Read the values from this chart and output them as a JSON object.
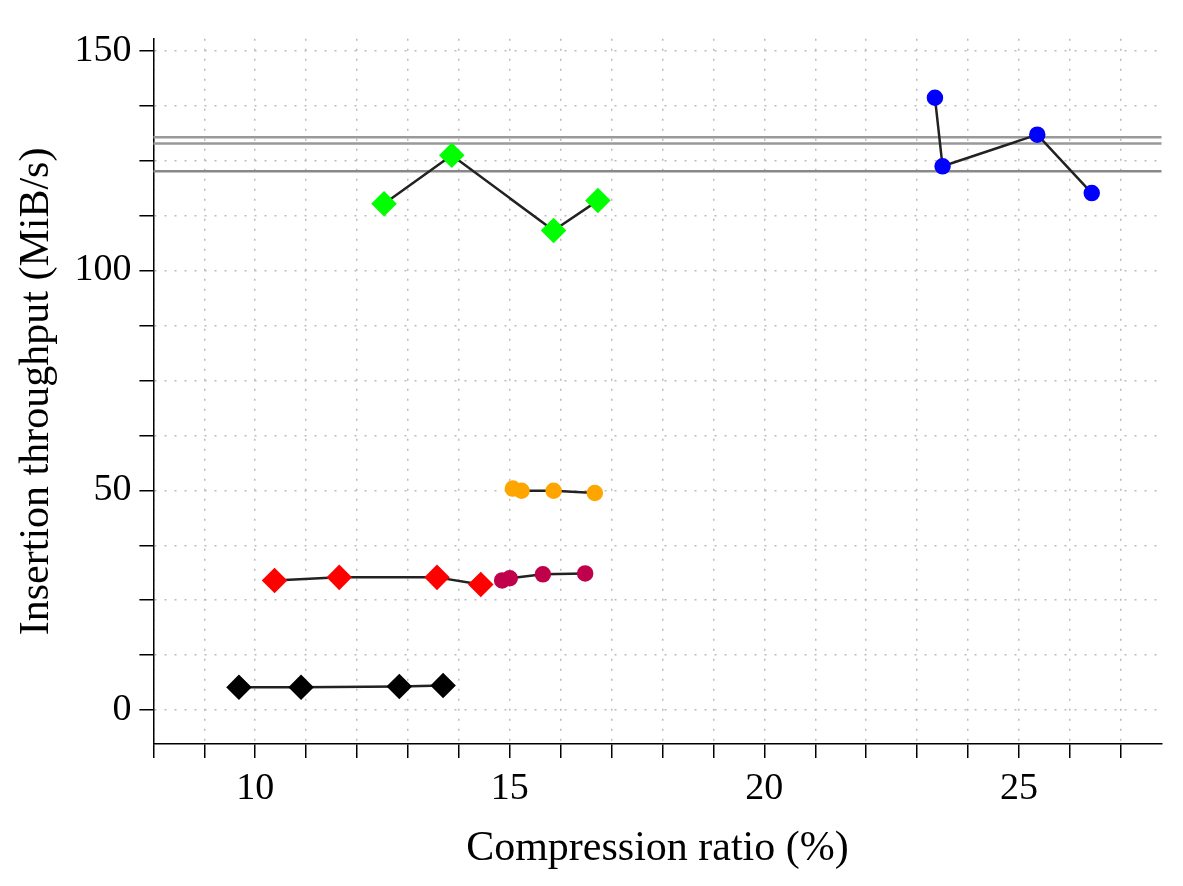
{
  "chart_data": {
    "type": "line",
    "xlabel": "Compression ratio (%)",
    "ylabel": "Insertion throughput (MiB/s)",
    "xlim": [
      8,
      27.8
    ],
    "ylim": [
      -7.7,
      152.7
    ],
    "xticks": [
      {
        "value": 8,
        "label": null
      },
      {
        "value": 9,
        "label": null
      },
      10,
      {
        "value": 11,
        "label": null
      },
      {
        "value": 12,
        "label": null
      },
      {
        "value": 13,
        "label": null
      },
      {
        "value": 14,
        "label": null
      },
      15,
      {
        "value": 16,
        "label": null
      },
      {
        "value": 17,
        "label": null
      },
      {
        "value": 18,
        "label": null
      },
      {
        "value": 19,
        "label": null
      },
      20,
      {
        "value": 21,
        "label": null
      },
      {
        "value": 22,
        "label": null
      },
      {
        "value": 23,
        "label": null
      },
      {
        "value": 24,
        "label": null
      },
      25,
      {
        "value": 26,
        "label": null
      },
      {
        "value": 27,
        "label": null
      }
    ],
    "yticks": [
      0,
      {
        "value": 12.5,
        "label": null
      },
      {
        "value": 25,
        "label": null
      },
      {
        "value": 37.5,
        "label": null
      },
      50,
      {
        "value": 62.5,
        "label": null
      },
      {
        "value": 75,
        "label": null
      },
      {
        "value": 87.5,
        "label": null
      },
      100,
      {
        "value": 112.5,
        "label": null
      },
      {
        "value": 125,
        "label": null
      },
      {
        "value": 137.5,
        "label": null
      },
      150
    ],
    "grid": true,
    "legend": false,
    "ref_lines": [
      {
        "axis": "y",
        "value": 130.3,
        "color": "#999999"
      },
      {
        "axis": "y",
        "value": 128.9,
        "color": "#999999"
      },
      {
        "axis": "y",
        "value": 122.6,
        "color": "#888888"
      }
    ],
    "series": [
      {
        "color": "#000000",
        "marker": "diamond",
        "x": [
          9.68,
          10.9,
          12.83,
          13.69
        ],
        "values": [
          5.2,
          5.2,
          5.4,
          5.6
        ]
      },
      {
        "color": "#ff0000",
        "marker": "diamond",
        "x": [
          10.38,
          11.65,
          13.57,
          14.43
        ],
        "values": [
          29.5,
          30.2,
          30.2,
          28.6
        ]
      },
      {
        "color": "#c0004a",
        "marker": "circle",
        "x": [
          14.85,
          15.0,
          15.65,
          16.48
        ],
        "values": [
          29.5,
          30,
          30.9,
          31.1
        ]
      },
      {
        "color": "#ffa500",
        "marker": "circle",
        "x": [
          15.06,
          15.23,
          15.86,
          16.67
        ],
        "values": [
          50.4,
          49.9,
          49.9,
          49.4
        ]
      },
      {
        "color": "#00ff00",
        "marker": "diamond",
        "x": [
          12.53,
          13.86,
          15.86,
          16.73
        ],
        "values": [
          115.2,
          126.2,
          109.1,
          115.9
        ]
      },
      {
        "color": "#0000ff",
        "marker": "circle",
        "x": [
          23.35,
          23.5,
          25.36,
          26.43
        ],
        "values": [
          139.3,
          123.7,
          130.9,
          117.6
        ]
      }
    ]
  }
}
